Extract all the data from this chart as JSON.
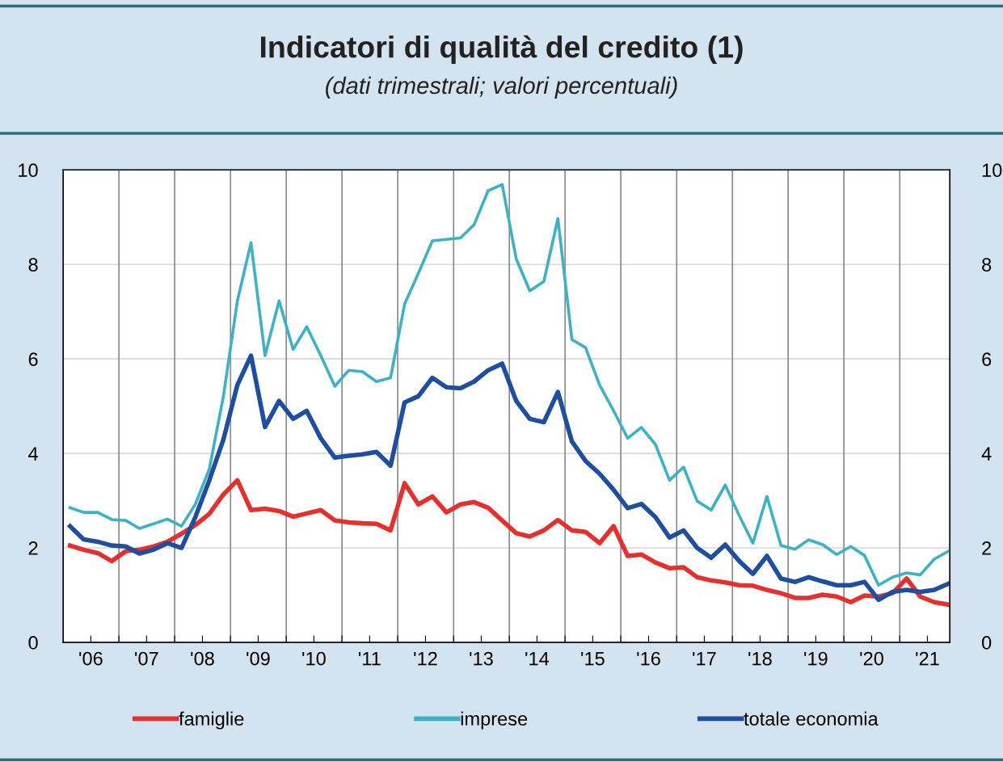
{
  "chart_data": {
    "type": "line",
    "title": "Indicatori di qualità del credito (1)",
    "subtitle": "(dati trimestrali; valori percentuali)",
    "x": [
      "2006-02-15",
      "2006-05-15",
      "2006-08-15",
      "2006-11-15",
      "2007-02-15",
      "2007-05-15",
      "2007-08-15",
      "2007-11-15",
      "2008-02-15",
      "2008-05-15",
      "2008-08-15",
      "2008-11-15",
      "2009-02-15",
      "2009-05-15",
      "2009-08-15",
      "2009-11-15",
      "2010-02-15",
      "2010-05-15",
      "2010-08-15",
      "2010-11-15",
      "2011-02-15",
      "2011-05-15",
      "2011-08-15",
      "2011-11-15",
      "2012-02-15",
      "2012-05-15",
      "2012-08-15",
      "2012-11-15",
      "2013-02-15",
      "2013-05-15",
      "2013-08-15",
      "2013-11-15",
      "2014-02-15",
      "2014-05-15",
      "2014-08-15",
      "2014-11-15",
      "2015-02-15",
      "2015-05-15",
      "2015-08-15",
      "2015-11-15",
      "2016-02-15",
      "2016-05-15",
      "2016-08-15",
      "2016-11-15",
      "2017-02-15",
      "2017-05-15",
      "2017-08-15",
      "2017-11-15",
      "2018-02-15",
      "2018-05-15",
      "2018-08-15",
      "2018-11-15",
      "2019-02-15",
      "2019-05-15",
      "2019-08-15",
      "2019-11-15",
      "2020-02-15",
      "2020-05-15",
      "2020-08-15",
      "2020-11-15",
      "2021-02-15",
      "2021-05-15",
      "2021-08-15",
      "2021-11-15"
    ],
    "series": [
      {
        "name": "famiglie",
        "color": "#e4312f",
        "values": [
          2.05,
          1.96,
          1.89,
          1.72,
          1.93,
          1.96,
          2.03,
          2.13,
          2.3,
          2.48,
          2.72,
          3.13,
          3.43,
          2.8,
          2.83,
          2.78,
          2.66,
          2.73,
          2.8,
          2.58,
          2.54,
          2.52,
          2.51,
          2.37,
          3.37,
          2.92,
          3.09,
          2.75,
          2.92,
          2.97,
          2.85,
          2.58,
          2.31,
          2.24,
          2.37,
          2.59,
          2.37,
          2.34,
          2.1,
          2.46,
          1.83,
          1.86,
          1.69,
          1.57,
          1.59,
          1.38,
          1.31,
          1.27,
          1.21,
          1.2,
          1.11,
          1.04,
          0.94,
          0.94,
          1.01,
          0.97,
          0.85,
          0.99,
          0.97,
          1.04,
          1.35,
          0.97,
          0.85,
          0.8
        ]
      },
      {
        "name": "imprese",
        "color": "#3fb1c5",
        "values": [
          2.85,
          2.75,
          2.75,
          2.6,
          2.58,
          2.41,
          2.51,
          2.61,
          2.46,
          2.92,
          3.67,
          5.2,
          7.23,
          8.46,
          6.07,
          7.23,
          6.2,
          6.68,
          6.07,
          5.42,
          5.76,
          5.73,
          5.52,
          5.6,
          7.16,
          7.81,
          8.5,
          8.53,
          8.56,
          8.84,
          9.56,
          9.69,
          8.12,
          7.44,
          7.64,
          8.97,
          6.41,
          6.24,
          5.45,
          4.9,
          4.32,
          4.55,
          4.19,
          3.43,
          3.71,
          2.99,
          2.8,
          3.33,
          2.68,
          2.1,
          3.09,
          2.05,
          1.97,
          2.17,
          2.07,
          1.86,
          2.03,
          1.84,
          1.21,
          1.38,
          1.47,
          1.43,
          1.76,
          1.93
        ]
      },
      {
        "name": "totale economia",
        "color": "#1f4e9e",
        "values": [
          2.46,
          2.18,
          2.13,
          2.05,
          2.03,
          1.88,
          1.96,
          2.1,
          2.0,
          2.65,
          3.43,
          4.29,
          5.45,
          6.07,
          4.56,
          5.11,
          4.73,
          4.9,
          4.32,
          3.91,
          3.95,
          3.98,
          4.03,
          3.74,
          5.08,
          5.21,
          5.6,
          5.4,
          5.38,
          5.52,
          5.76,
          5.9,
          5.11,
          4.73,
          4.66,
          5.3,
          4.25,
          3.84,
          3.57,
          3.23,
          2.84,
          2.93,
          2.65,
          2.22,
          2.37,
          2.0,
          1.79,
          2.07,
          1.72,
          1.45,
          1.83,
          1.35,
          1.28,
          1.38,
          1.29,
          1.21,
          1.21,
          1.28,
          0.9,
          1.07,
          1.11,
          1.07,
          1.11,
          1.24
        ]
      }
    ],
    "xlim": [
      "2006-01-01",
      "2021-11-25"
    ],
    "xticks": [
      {
        "value": "2006-07-01",
        "label": "'06"
      },
      {
        "value": "2007-01-01",
        "label": null
      },
      {
        "value": "2007-07-01",
        "label": "'07"
      },
      {
        "value": "2008-01-01",
        "label": null
      },
      {
        "value": "2008-07-01",
        "label": "'08"
      },
      {
        "value": "2009-01-01",
        "label": null
      },
      {
        "value": "2009-07-01",
        "label": "'09"
      },
      {
        "value": "2010-01-01",
        "label": null
      },
      {
        "value": "2010-07-01",
        "label": "'10"
      },
      {
        "value": "2011-01-01",
        "label": null
      },
      {
        "value": "2011-07-01",
        "label": "'11"
      },
      {
        "value": "2012-01-01",
        "label": null
      },
      {
        "value": "2012-07-01",
        "label": "'12"
      },
      {
        "value": "2013-01-01",
        "label": null
      },
      {
        "value": "2013-07-01",
        "label": "'13"
      },
      {
        "value": "2014-01-01",
        "label": null
      },
      {
        "value": "2014-07-01",
        "label": "'14"
      },
      {
        "value": "2015-01-01",
        "label": null
      },
      {
        "value": "2015-07-01",
        "label": "'15"
      },
      {
        "value": "2016-01-01",
        "label": null
      },
      {
        "value": "2016-07-01",
        "label": "'16"
      },
      {
        "value": "2017-01-01",
        "label": null
      },
      {
        "value": "2017-07-01",
        "label": "'17"
      },
      {
        "value": "2018-01-01",
        "label": null
      },
      {
        "value": "2018-07-01",
        "label": "'18"
      },
      {
        "value": "2019-01-01",
        "label": null
      },
      {
        "value": "2019-07-01",
        "label": "'19"
      },
      {
        "value": "2020-01-01",
        "label": null
      },
      {
        "value": "2020-07-01",
        "label": "'20"
      },
      {
        "value": "2021-01-01",
        "label": null
      },
      {
        "value": "2021-07-01",
        "label": "'21"
      }
    ],
    "ylim": [
      0,
      10
    ],
    "yticks": [
      0,
      2,
      4,
      6,
      8,
      10
    ],
    "y2lim": [
      0,
      10
    ],
    "y2ticks": [
      0,
      2,
      4,
      6,
      8,
      10
    ],
    "grid": true,
    "legend": "bottom",
    "marker": "none",
    "line_style": "solid"
  }
}
